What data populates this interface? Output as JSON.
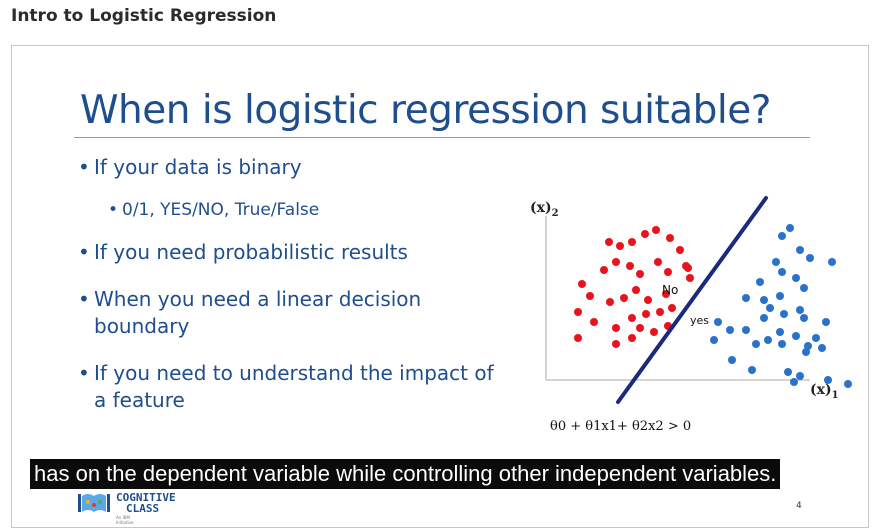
{
  "page": {
    "title": "Intro to Logistic Regression"
  },
  "slide": {
    "title": "When is logistic regression suitable?",
    "bullets": [
      {
        "text": "If your data is binary",
        "level": 1
      },
      {
        "text": "0/1, YES/NO,  True/False",
        "level": 2
      },
      {
        "text": "If you need probabilistic results",
        "level": 1
      },
      {
        "text": "When you need a linear decision boundary",
        "level": 1
      },
      {
        "text": "If you need to understand the impact of a feature",
        "level": 1
      }
    ],
    "plot": {
      "y_axis_label": "(x)",
      "y_axis_sub": "2",
      "x_axis_label": "(x)",
      "x_axis_sub": "1",
      "label_no": "No",
      "label_yes": "yes",
      "equation": "θ0 + θ1x1+ θ2x2 > 0",
      "colors": {
        "no": "#e8141c",
        "yes": "#2a72c9",
        "line": "#1b2a7a"
      }
    },
    "page_number": "4",
    "logo": {
      "line1": "COGNITIVE",
      "line2": "CLASS",
      "tagline": "An IBM Initiative"
    }
  },
  "caption": "has on the dependent variable while controlling other independent variables."
}
